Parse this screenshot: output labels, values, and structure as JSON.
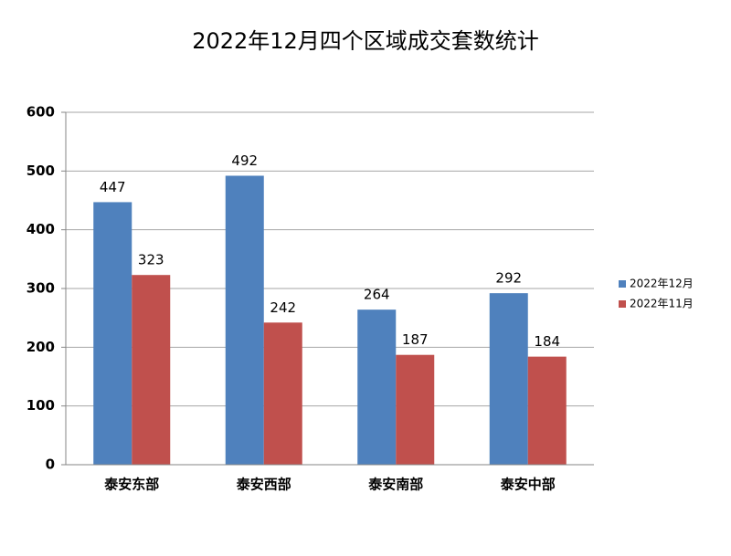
{
  "chart_data": {
    "type": "bar",
    "title": "2022年12月四个区域成交套数统计",
    "categories": [
      "泰安东部",
      "泰安西部",
      "泰安南部",
      "泰安中部"
    ],
    "series": [
      {
        "name": "2022年12月",
        "color": "#4f81bd",
        "values": [
          447,
          492,
          264,
          292
        ]
      },
      {
        "name": "2022年11月",
        "color": "#c0504d",
        "values": [
          323,
          242,
          187,
          184
        ]
      }
    ],
    "ylim": [
      0,
      600
    ],
    "yticks": [
      0,
      100,
      200,
      300,
      400,
      500,
      600
    ],
    "grid": true,
    "legend": "right"
  }
}
